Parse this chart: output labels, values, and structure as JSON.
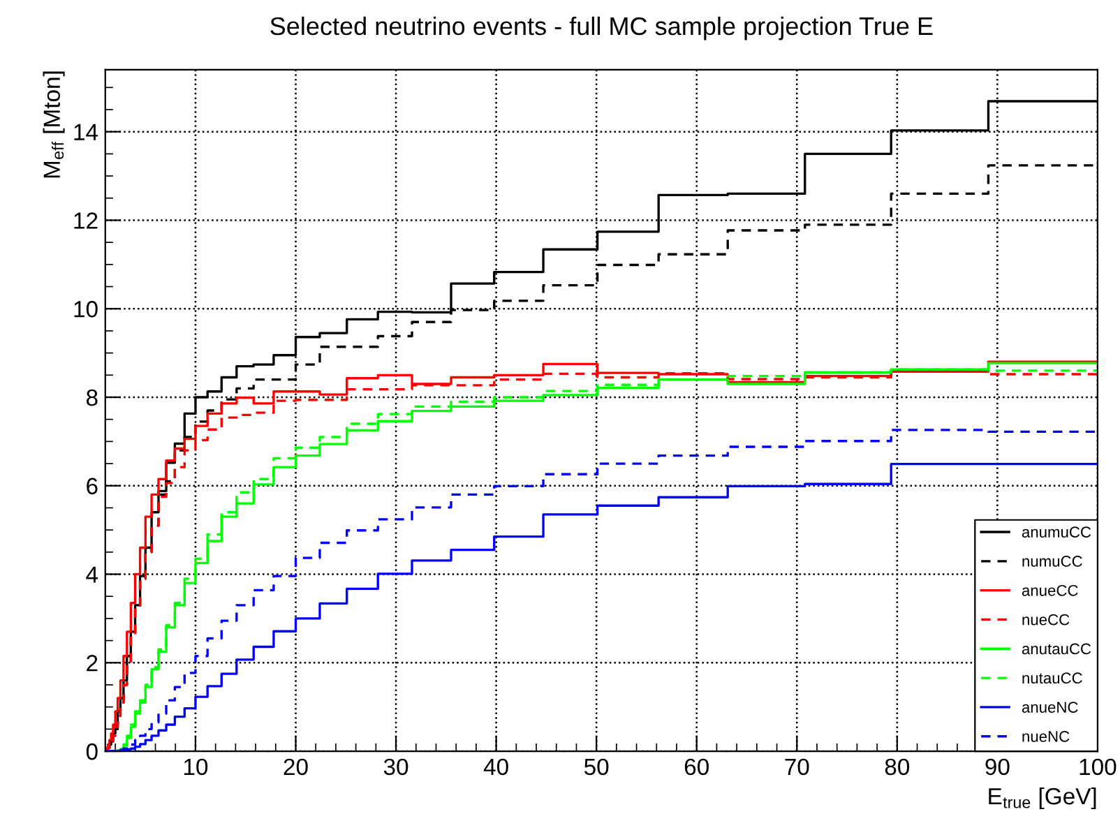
{
  "chart_data": {
    "type": "step",
    "title": "Selected neutrino events - full MC sample projection True E",
    "xlabel": "E$_{true}$ [GeV]",
    "ylabel": "M$_{eff}$ [Mton]",
    "x": [
      1,
      1.12,
      1.26,
      1.41,
      1.58,
      1.78,
      2,
      2.24,
      2.51,
      2.82,
      3.16,
      3.55,
      3.98,
      4.47,
      5.01,
      5.62,
      6.31,
      7.08,
      7.94,
      8.91,
      10,
      11.2,
      12.6,
      14.1,
      15.8,
      17.8,
      20,
      22.4,
      25.1,
      28.2,
      31.6,
      35.5,
      39.8,
      44.7,
      50.1,
      56.2,
      63.1,
      70.8,
      79.4,
      89.1,
      100
    ],
    "series": [
      {
        "name": "anumuCC",
        "color": "#000000",
        "line_style": "solid",
        "values": [
          0.01,
          0.03,
          0.08,
          0.15,
          0.25,
          0.4,
          0.6,
          0.9,
          1.2,
          1.6,
          2.15,
          2.7,
          3.3,
          3.96,
          4.6,
          5.4,
          5.88,
          6.52,
          6.95,
          7.63,
          8.0,
          8.13,
          8.45,
          8.7,
          8.74,
          8.95,
          9.36,
          9.45,
          9.76,
          9.93,
          9.92,
          10.57,
          10.83,
          11.34,
          11.74,
          12.57,
          12.6,
          13.5,
          14.03,
          14.69,
          14.69
        ]
      },
      {
        "name": "numuCC",
        "color": "#000000",
        "line_style": "dashed",
        "values": [
          0.01,
          0.03,
          0.07,
          0.13,
          0.22,
          0.35,
          0.5,
          0.8,
          1.1,
          1.5,
          2.0,
          2.6,
          3.2,
          3.9,
          4.5,
          5.1,
          5.8,
          6.1,
          6.8,
          7.1,
          7.45,
          7.7,
          7.95,
          8.2,
          8.4,
          8.4,
          8.74,
          9.14,
          9.14,
          9.38,
          9.7,
          9.97,
          10.18,
          10.53,
          10.99,
          11.23,
          11.77,
          11.9,
          12.6,
          13.24,
          13.24
        ]
      },
      {
        "name": "anueCC",
        "color": "#ff0000",
        "line_style": "solid",
        "values": [
          0.02,
          0.07,
          0.15,
          0.25,
          0.4,
          0.6,
          0.9,
          1.2,
          1.6,
          2.15,
          2.7,
          3.35,
          4.0,
          4.6,
          5.3,
          5.8,
          6.15,
          6.57,
          6.84,
          7.06,
          7.35,
          7.63,
          7.86,
          7.99,
          7.86,
          8.13,
          8.13,
          8.06,
          8.43,
          8.5,
          8.3,
          8.45,
          8.5,
          8.75,
          8.55,
          8.52,
          8.34,
          8.48,
          8.58,
          8.8,
          8.8
        ]
      },
      {
        "name": "nueCC",
        "color": "#ff0000",
        "line_style": "dashed",
        "values": [
          0.01,
          0.03,
          0.07,
          0.13,
          0.22,
          0.35,
          0.55,
          0.8,
          1.1,
          1.5,
          2.0,
          2.6,
          3.2,
          3.9,
          4.5,
          5.1,
          5.75,
          6.06,
          6.42,
          6.8,
          7.03,
          7.27,
          7.54,
          7.6,
          7.65,
          7.92,
          7.94,
          7.94,
          8.18,
          8.18,
          8.27,
          8.27,
          8.4,
          8.53,
          8.45,
          8.54,
          8.41,
          8.45,
          8.6,
          8.52,
          8.52
        ]
      },
      {
        "name": "anutauCC",
        "color": "#00ff00",
        "line_style": "solid",
        "values": [
          null,
          null,
          null,
          null,
          0,
          0,
          0.01,
          0.02,
          0.05,
          0.12,
          0.3,
          0.55,
          0.85,
          1.1,
          1.45,
          1.85,
          2.25,
          2.8,
          3.3,
          3.8,
          4.25,
          4.75,
          5.3,
          5.6,
          6.03,
          6.42,
          6.68,
          6.94,
          7.25,
          7.46,
          7.69,
          7.79,
          7.92,
          8.05,
          8.21,
          8.4,
          8.3,
          8.56,
          8.63,
          8.77,
          8.77
        ]
      },
      {
        "name": "nutauCC",
        "color": "#00ff00",
        "line_style": "dashed",
        "values": [
          null,
          null,
          0,
          0,
          0,
          0,
          0.01,
          0.02,
          0.05,
          0.15,
          0.35,
          0.6,
          0.9,
          1.15,
          1.5,
          1.9,
          2.3,
          2.85,
          3.35,
          3.9,
          4.35,
          4.9,
          5.4,
          5.85,
          6.15,
          6.62,
          6.86,
          7.1,
          7.4,
          7.62,
          7.79,
          7.9,
          8.0,
          8.14,
          8.28,
          8.4,
          8.48,
          8.56,
          8.63,
          8.6,
          8.6
        ]
      },
      {
        "name": "anueNC",
        "color": "#0000ff",
        "line_style": "solid",
        "values": [
          0,
          0,
          0,
          0,
          0,
          0,
          0,
          0,
          0.01,
          0.02,
          0.04,
          0.06,
          0.1,
          0.16,
          0.25,
          0.35,
          0.47,
          0.6,
          0.78,
          0.97,
          1.23,
          1.47,
          1.75,
          2.07,
          2.36,
          2.71,
          3.0,
          3.34,
          3.67,
          4.01,
          4.31,
          4.55,
          4.85,
          5.35,
          5.55,
          5.74,
          5.99,
          6.04,
          6.49,
          6.49,
          6.49
        ]
      },
      {
        "name": "nueNC",
        "color": "#0000ff",
        "line_style": "dashed",
        "values": [
          0,
          0,
          0,
          0,
          0,
          0,
          0,
          0.01,
          0.03,
          0.06,
          0.1,
          0.15,
          0.25,
          0.35,
          0.5,
          0.65,
          0.85,
          1.15,
          1.45,
          1.77,
          2.15,
          2.55,
          2.95,
          3.3,
          3.64,
          3.96,
          4.37,
          4.71,
          4.99,
          5.24,
          5.51,
          5.8,
          5.99,
          6.26,
          6.5,
          6.68,
          6.88,
          7.01,
          7.26,
          7.22,
          7.22
        ]
      }
    ],
    "xlim": [
      1,
      100
    ],
    "ylim": [
      0,
      15.4
    ],
    "xticks": [
      10,
      20,
      30,
      40,
      50,
      60,
      70,
      80,
      90,
      100
    ],
    "yticks": [
      0,
      2,
      4,
      6,
      8,
      10,
      12,
      14
    ],
    "grid": true,
    "legend": "bottom right"
  }
}
